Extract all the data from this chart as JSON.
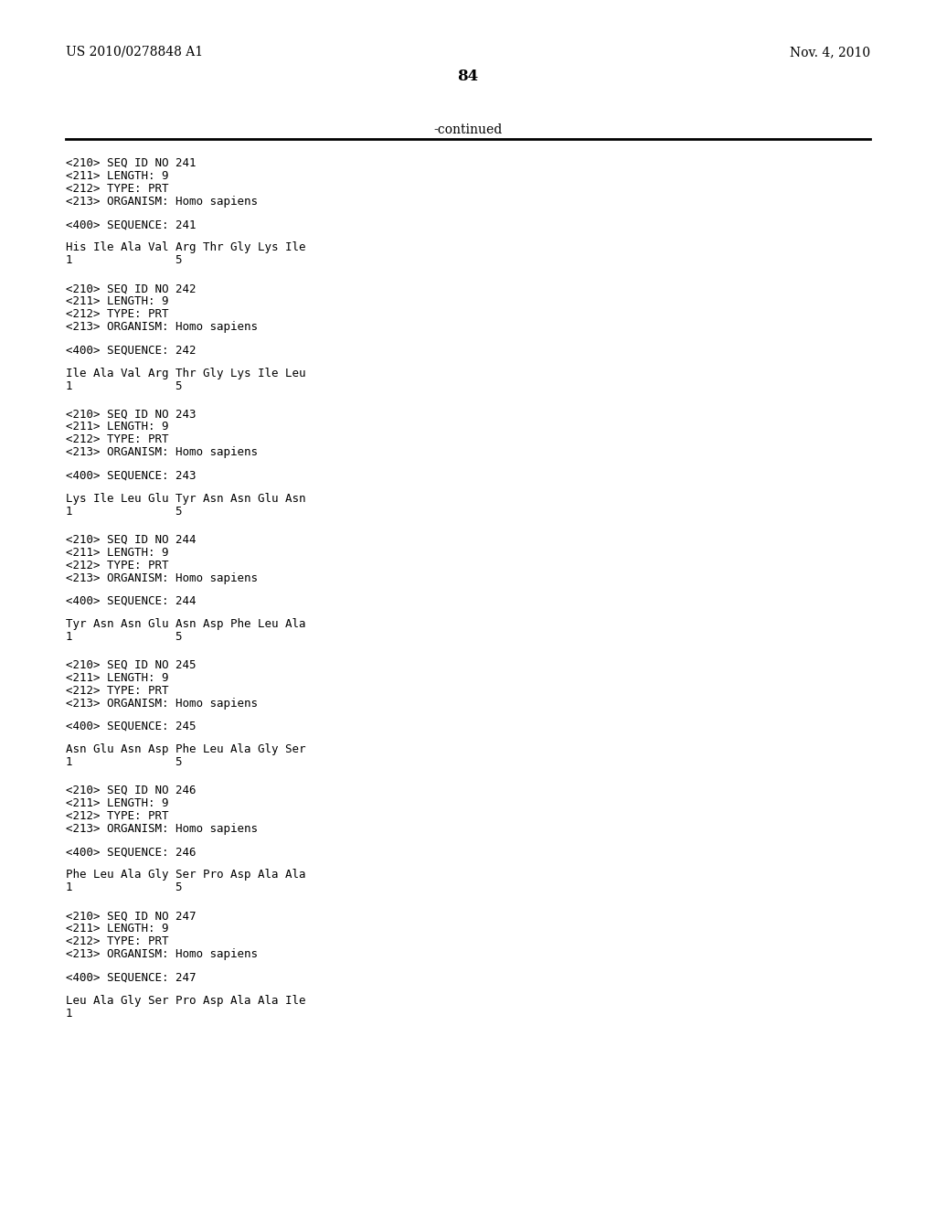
{
  "background_color": "#ffffff",
  "header_left": "US 2010/0278848 A1",
  "header_right": "Nov. 4, 2010",
  "page_number": "84",
  "continued_text": "-continued",
  "entries": [
    {
      "seq_id": "241",
      "length": "9",
      "type": "PRT",
      "organism": "Homo sapiens",
      "sequence_label": "241",
      "sequence_line1": "His Ile Ala Val Arg Thr Gly Lys Ile",
      "sequence_line2": "1               5"
    },
    {
      "seq_id": "242",
      "length": "9",
      "type": "PRT",
      "organism": "Homo sapiens",
      "sequence_label": "242",
      "sequence_line1": "Ile Ala Val Arg Thr Gly Lys Ile Leu",
      "sequence_line2": "1               5"
    },
    {
      "seq_id": "243",
      "length": "9",
      "type": "PRT",
      "organism": "Homo sapiens",
      "sequence_label": "243",
      "sequence_line1": "Lys Ile Leu Glu Tyr Asn Asn Glu Asn",
      "sequence_line2": "1               5"
    },
    {
      "seq_id": "244",
      "length": "9",
      "type": "PRT",
      "organism": "Homo sapiens",
      "sequence_label": "244",
      "sequence_line1": "Tyr Asn Asn Glu Asn Asp Phe Leu Ala",
      "sequence_line2": "1               5"
    },
    {
      "seq_id": "245",
      "length": "9",
      "type": "PRT",
      "organism": "Homo sapiens",
      "sequence_label": "245",
      "sequence_line1": "Asn Glu Asn Asp Phe Leu Ala Gly Ser",
      "sequence_line2": "1               5"
    },
    {
      "seq_id": "246",
      "length": "9",
      "type": "PRT",
      "organism": "Homo sapiens",
      "sequence_label": "246",
      "sequence_line1": "Phe Leu Ala Gly Ser Pro Asp Ala Ala",
      "sequence_line2": "1               5"
    },
    {
      "seq_id": "247",
      "length": "9",
      "type": "PRT",
      "organism": "Homo sapiens",
      "sequence_label": "247",
      "sequence_line1": "Leu Ala Gly Ser Pro Asp Ala Ala Ile",
      "sequence_line2": "1"
    }
  ]
}
